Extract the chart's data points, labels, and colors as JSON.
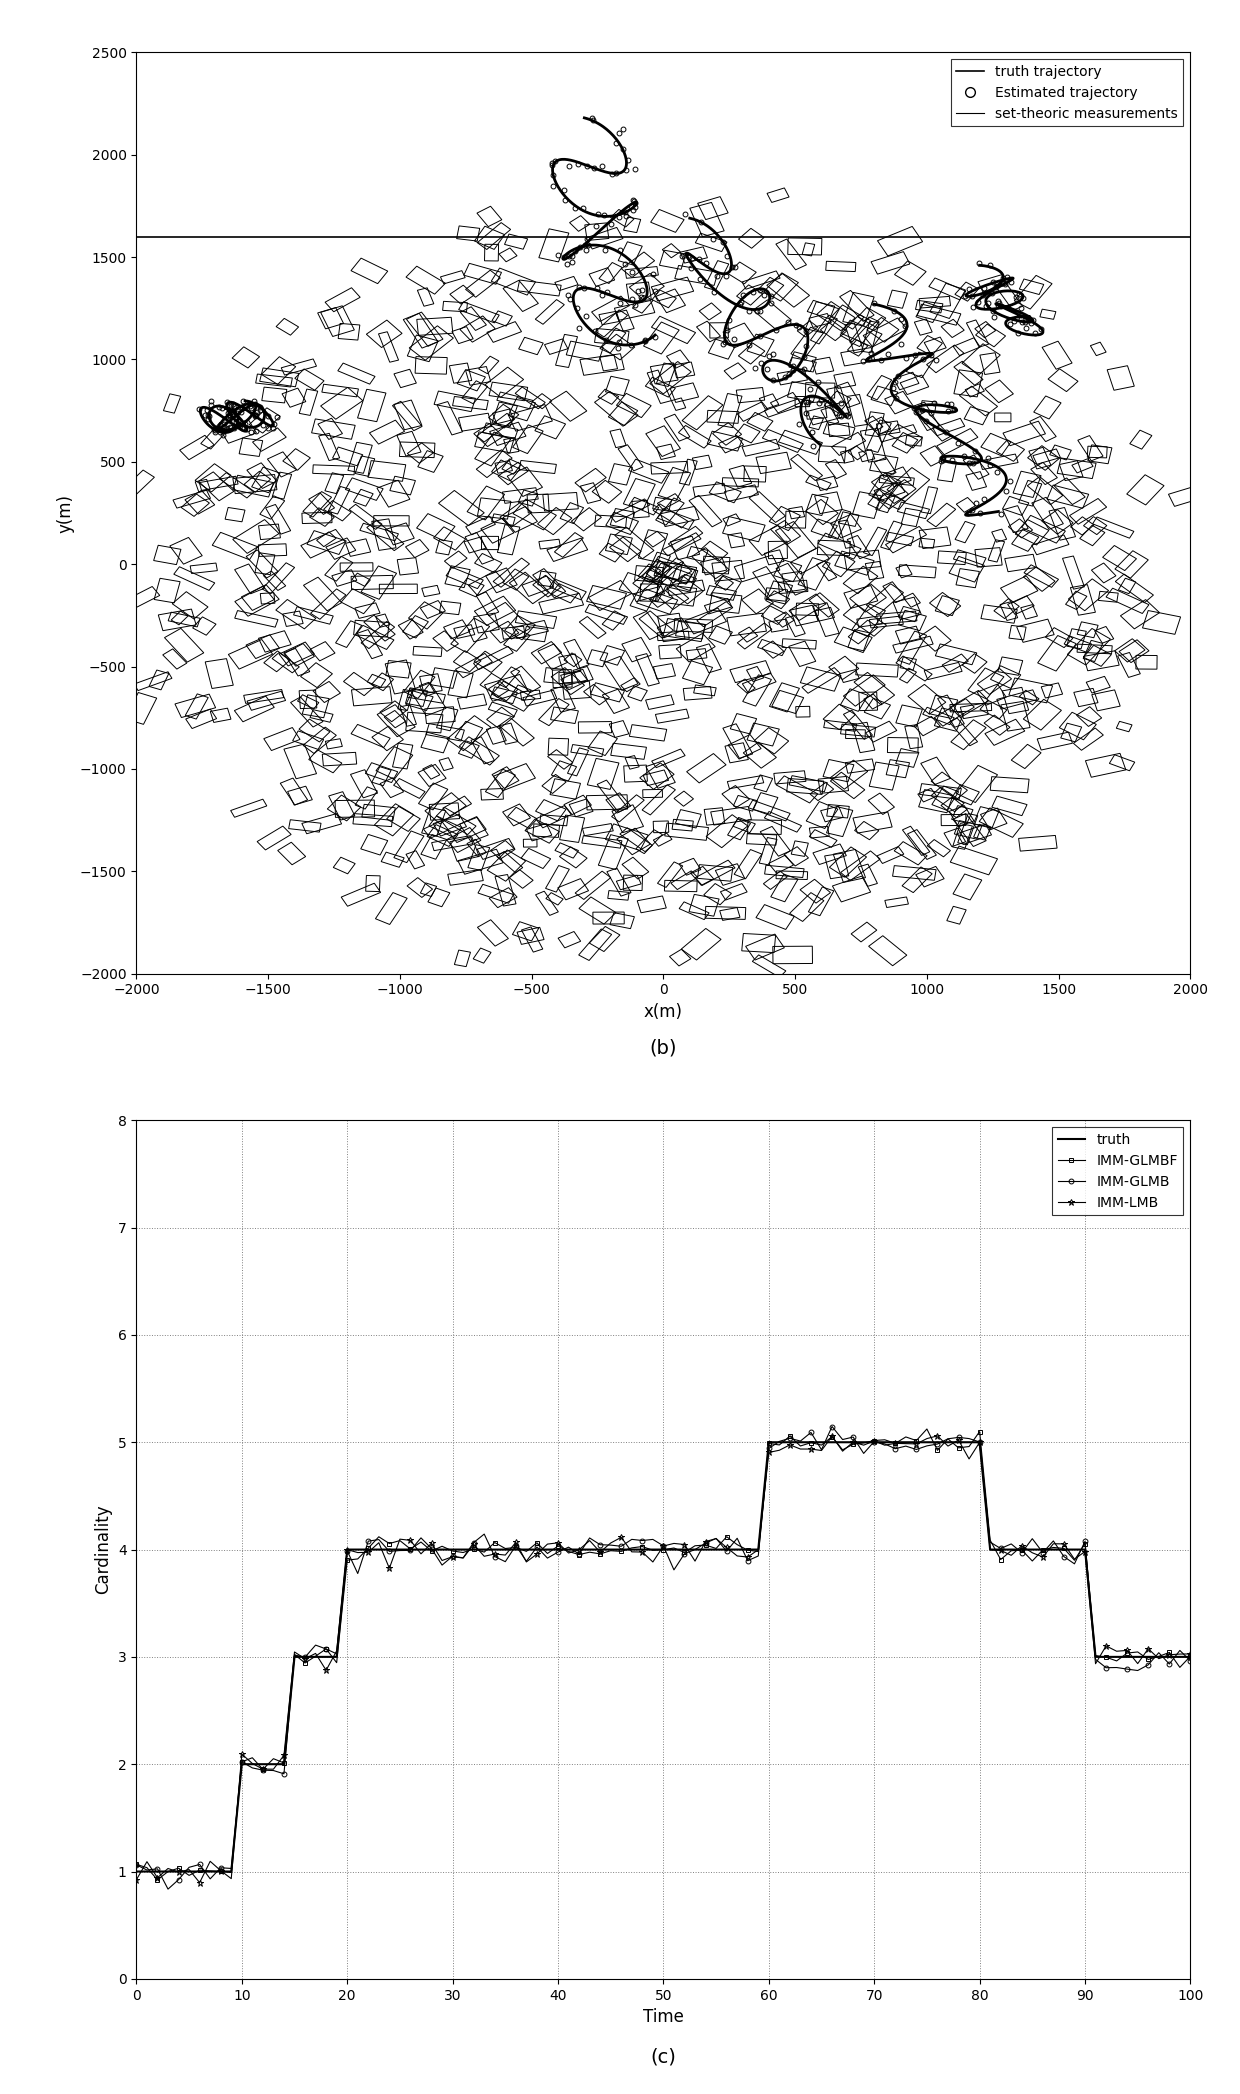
{
  "fig_width": 12.4,
  "fig_height": 20.94,
  "dpi": 100,
  "top_label_b": "(b)",
  "bottom_label_c": "(c)",
  "plot_b": {
    "xlim": [
      -2000,
      2000
    ],
    "ylim": [
      -2000,
      2500
    ],
    "xlabel": "x(m)",
    "ylabel": "y(m)",
    "xticks": [
      -2000,
      -1500,
      -1000,
      -500,
      0,
      500,
      1000,
      1500,
      2000
    ],
    "yticks": [
      -2000,
      -1500,
      -1000,
      -500,
      0,
      500,
      1000,
      1500,
      2000,
      2500
    ],
    "hline_y": 1600,
    "n_rects": 700,
    "legend": {
      "truth_trajectory": "truth trajectory",
      "estimated_trajectory": "Estimated trajectory",
      "set_theoric": "set-theoric measurements"
    }
  },
  "plot_c": {
    "xlim": [
      0,
      100
    ],
    "ylim": [
      0,
      8
    ],
    "xlabel": "Time",
    "ylabel": "Cardinality",
    "xticks": [
      0,
      10,
      20,
      30,
      40,
      50,
      60,
      70,
      80,
      90,
      100
    ],
    "yticks": [
      0,
      1,
      2,
      3,
      4,
      5,
      6,
      7,
      8
    ],
    "truth_steps": [
      0,
      1,
      2,
      3,
      4,
      5,
      6,
      7,
      8,
      9,
      10,
      11,
      12,
      13,
      14,
      15,
      16,
      17,
      18,
      19,
      20,
      21,
      22,
      23,
      24,
      25,
      26,
      27,
      28,
      29,
      30,
      31,
      32,
      33,
      34,
      35,
      36,
      37,
      38,
      39,
      40,
      41,
      42,
      43,
      44,
      45,
      46,
      47,
      48,
      49,
      50,
      51,
      52,
      53,
      54,
      55,
      56,
      57,
      58,
      59,
      60,
      61,
      62,
      63,
      64,
      65,
      66,
      67,
      68,
      69,
      70,
      71,
      72,
      73,
      74,
      75,
      76,
      77,
      78,
      79,
      80,
      81,
      82,
      83,
      84,
      85,
      86,
      87,
      88,
      89,
      90,
      91,
      92,
      93,
      94,
      95,
      96,
      97,
      98,
      99,
      100
    ],
    "truth_vals": [
      1,
      1,
      1,
      1,
      1,
      1,
      1,
      1,
      1,
      1,
      2,
      2,
      2,
      2,
      2,
      3,
      3,
      3,
      3,
      3,
      4,
      4,
      4,
      4,
      4,
      4,
      4,
      4,
      4,
      4,
      4,
      4,
      4,
      4,
      4,
      4,
      4,
      4,
      4,
      4,
      4,
      4,
      4,
      4,
      4,
      4,
      4,
      4,
      4,
      4,
      4,
      4,
      4,
      4,
      4,
      4,
      4,
      4,
      4,
      4,
      5,
      5,
      5,
      5,
      5,
      5,
      5,
      5,
      5,
      5,
      5,
      5,
      5,
      5,
      5,
      5,
      5,
      5,
      5,
      5,
      5,
      4,
      4,
      4,
      4,
      4,
      4,
      4,
      4,
      4,
      4,
      3,
      3,
      3,
      3,
      3,
      3,
      3,
      3,
      3,
      3
    ],
    "legend": {
      "truth": "truth",
      "imm_glmbf": "IMM-GLMBF",
      "imm_glmb": "IMM-GLMB",
      "imm_lmb": "IMM-LMB"
    }
  }
}
